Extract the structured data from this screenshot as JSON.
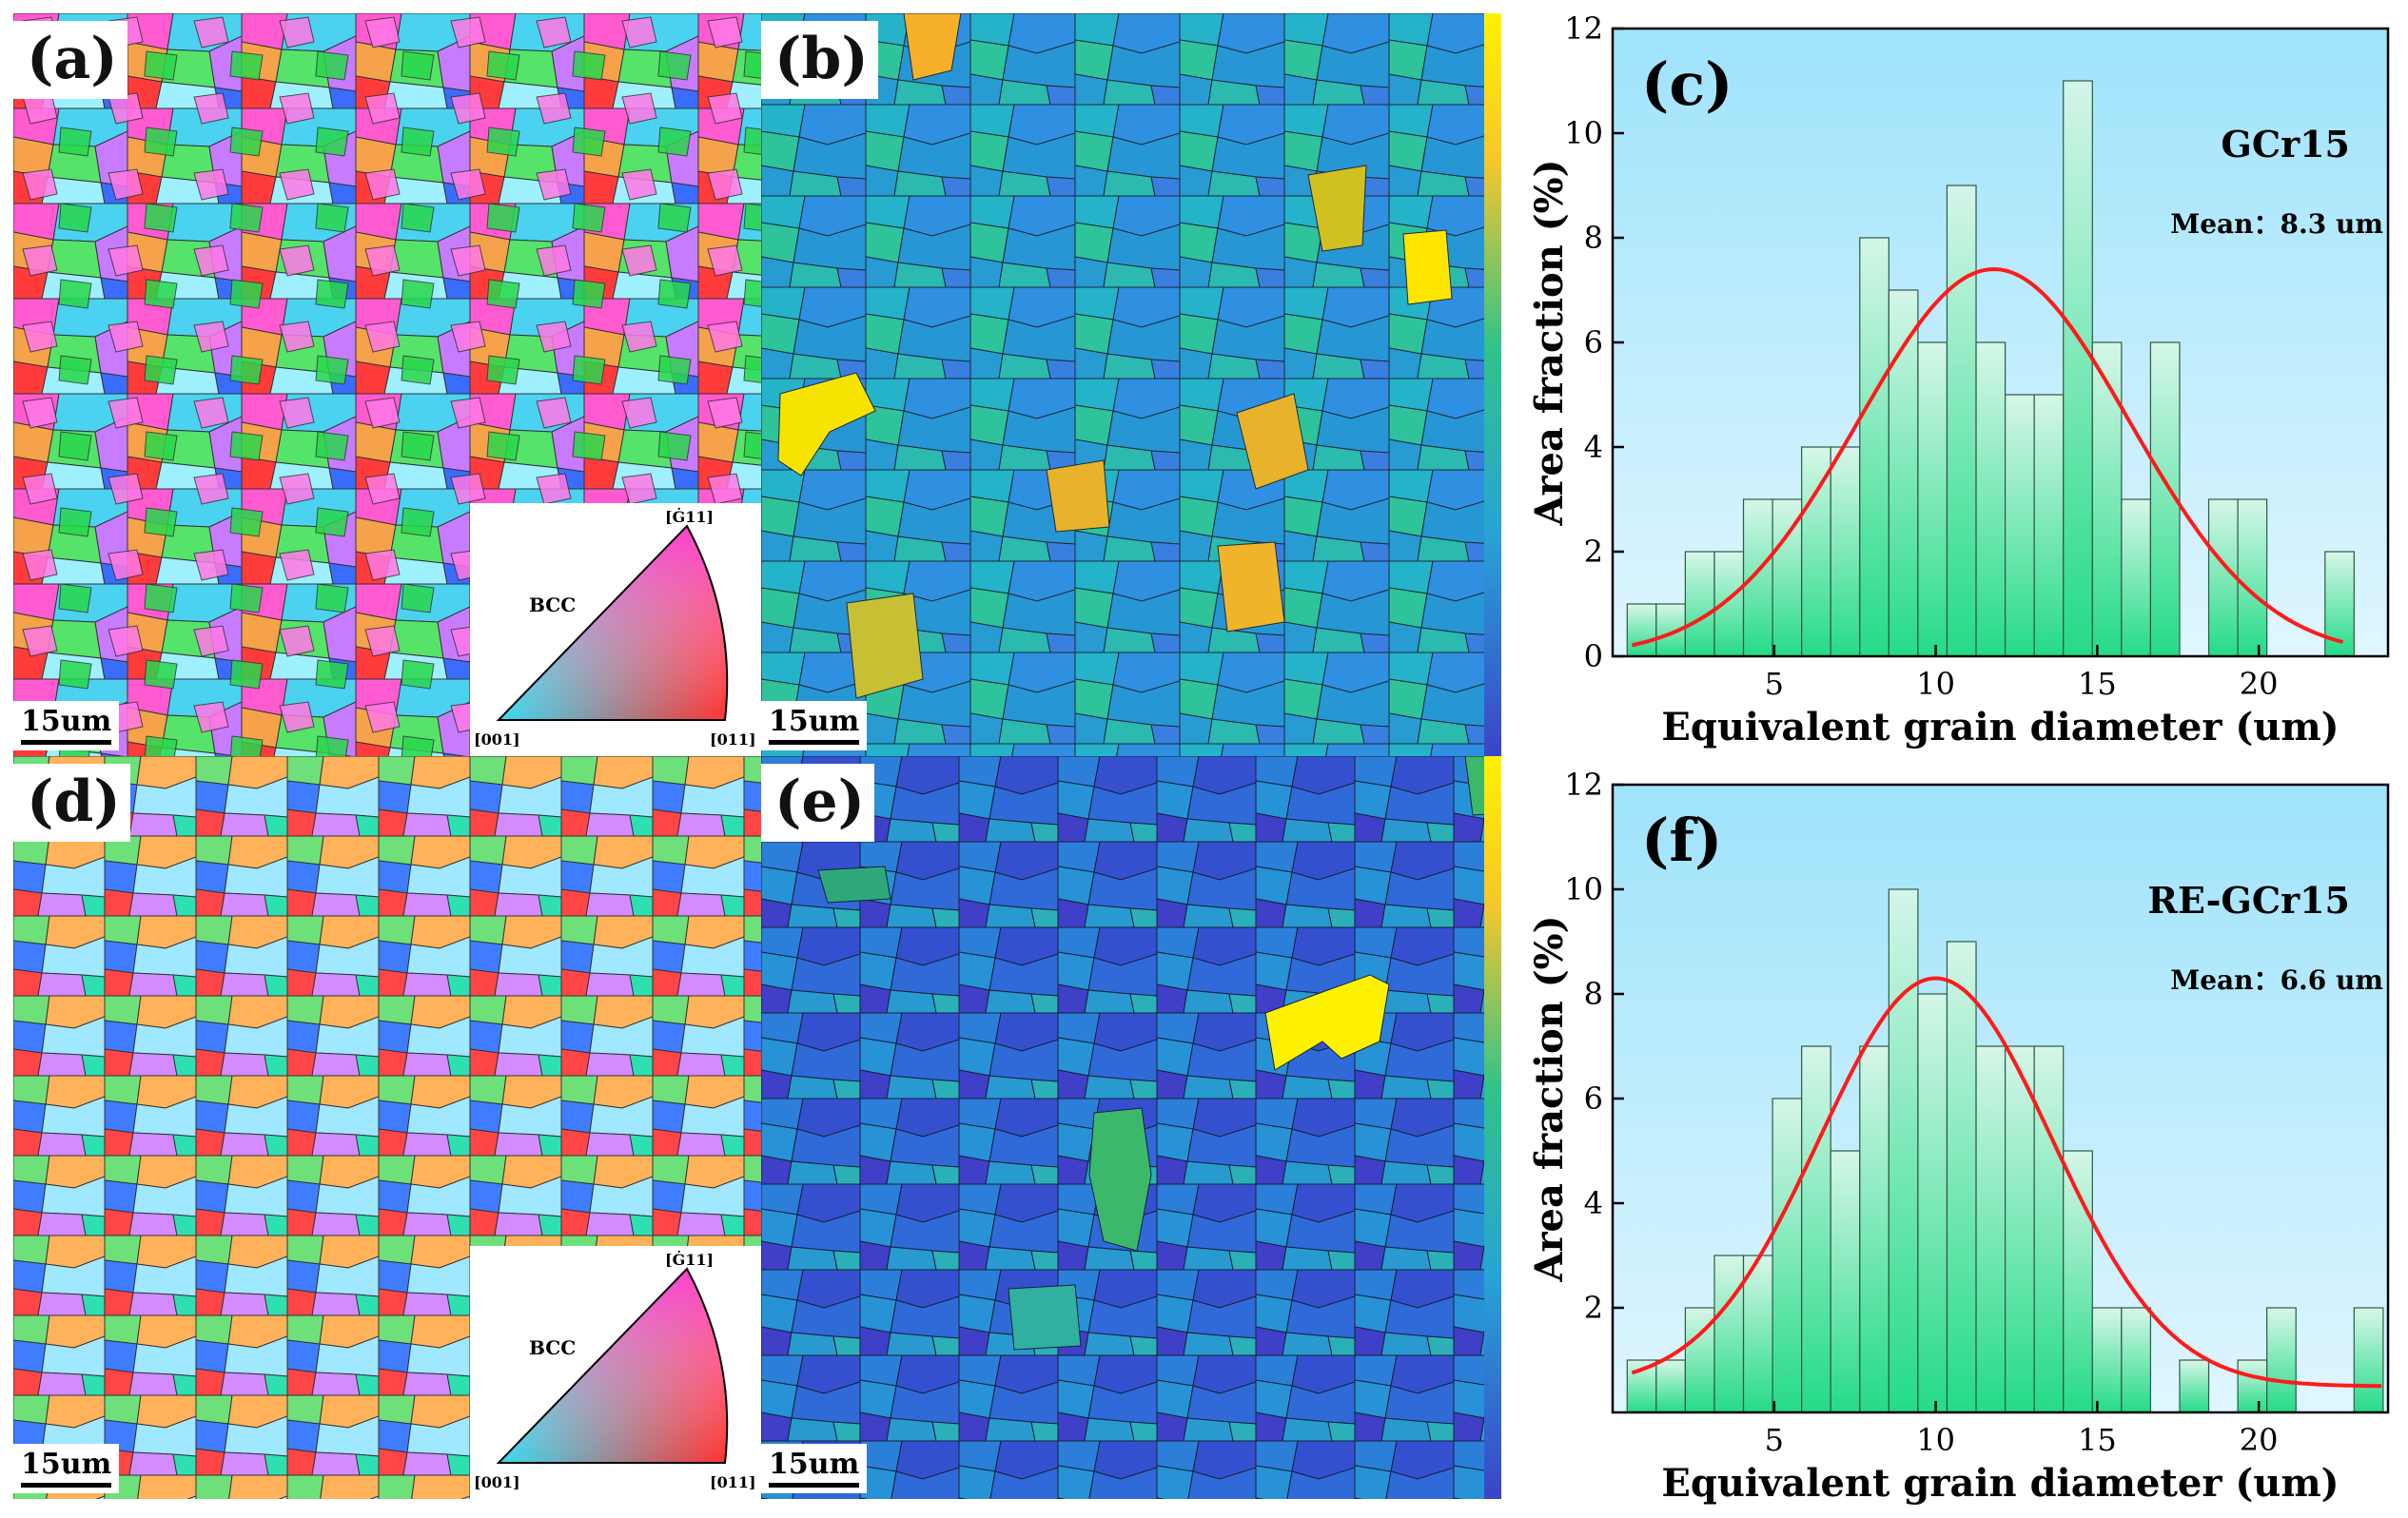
{
  "figure": {
    "panels": {
      "a": {
        "label": "(a)",
        "scale": "15um",
        "legend": {
          "title": "BCC",
          "top": "[Ġ11]",
          "bottom_left": "[001]",
          "bottom_right": "[011]"
        }
      },
      "b": {
        "label": "(b)",
        "scale": "15um"
      },
      "d": {
        "label": "(d)",
        "scale": "15um",
        "legend": {
          "title": "BCC",
          "top": "[Ġ11]",
          "bottom_left": "[001]",
          "bottom_right": "[011]"
        }
      },
      "e": {
        "label": "(e)",
        "scale": "15um"
      }
    },
    "colors": {
      "fit_curve": "#ff1a1a",
      "bar_fill_top": "#d8f7e6",
      "bar_fill_bottom": "#10d87a",
      "chart_bg_top": "#9fe3fb",
      "chart_bg_bottom": "#dff6ff"
    }
  },
  "chart_data": [
    {
      "type": "bar",
      "panel_label": "(c)",
      "sample": "GCr15",
      "mean_label": "Mean：8.3 um",
      "xlabel": "Equivalent grain diameter (um)",
      "ylabel": "Area fraction (%)",
      "xlim": [
        0,
        24
      ],
      "ylim": [
        0,
        12
      ],
      "xticks": [
        5,
        10,
        15,
        20
      ],
      "yticks": [
        0,
        2,
        4,
        6,
        8,
        10,
        12
      ],
      "bin_width": 0.9,
      "x": [
        0.9,
        1.8,
        2.7,
        3.6,
        4.5,
        5.4,
        6.3,
        7.2,
        8.1,
        9.0,
        9.9,
        10.8,
        11.7,
        12.6,
        13.5,
        14.4,
        15.3,
        16.2,
        17.1,
        18.0,
        18.9,
        19.8,
        20.7,
        21.6,
        22.5
      ],
      "values": [
        1,
        1,
        2,
        2,
        3,
        3,
        4,
        4,
        8,
        7,
        6,
        9,
        6,
        5,
        5,
        11,
        6,
        3,
        6,
        0,
        3,
        3,
        0,
        0,
        2
      ],
      "fit": {
        "type": "gaussian",
        "center": 11.8,
        "peak": 7.4,
        "sigma": 4.2,
        "x_range": [
          0.6,
          22.6
        ]
      }
    },
    {
      "type": "bar",
      "panel_label": "(f)",
      "sample": "RE-GCr15",
      "mean_label": "Mean：6.6 um",
      "xlabel": "Equivalent grain diameter (um)",
      "ylabel": "Area fraction (%)",
      "xlim": [
        0,
        24
      ],
      "ylim": [
        0,
        12
      ],
      "xticks": [
        5,
        10,
        15,
        20
      ],
      "yticks": [
        2,
        4,
        6,
        8,
        10,
        12
      ],
      "bin_width": 0.9,
      "x": [
        0.9,
        1.8,
        2.7,
        3.6,
        4.5,
        5.4,
        6.3,
        7.2,
        8.1,
        9.0,
        9.9,
        10.8,
        11.7,
        12.6,
        13.5,
        14.4,
        15.3,
        16.2,
        17.1,
        18.0,
        18.9,
        19.8,
        20.7,
        21.6,
        22.5,
        23.4
      ],
      "values": [
        1,
        1,
        2,
        3,
        3,
        6,
        7,
        5,
        7,
        10,
        8,
        9,
        7,
        7,
        7,
        5,
        2,
        2,
        0,
        1,
        0,
        1,
        2,
        0,
        0,
        2
      ],
      "fit": {
        "type": "gaussian",
        "center": 10.0,
        "peak": 8.3,
        "sigma": 3.6,
        "baseline": 0.5,
        "x_range": [
          0.6,
          23.8
        ]
      }
    }
  ]
}
